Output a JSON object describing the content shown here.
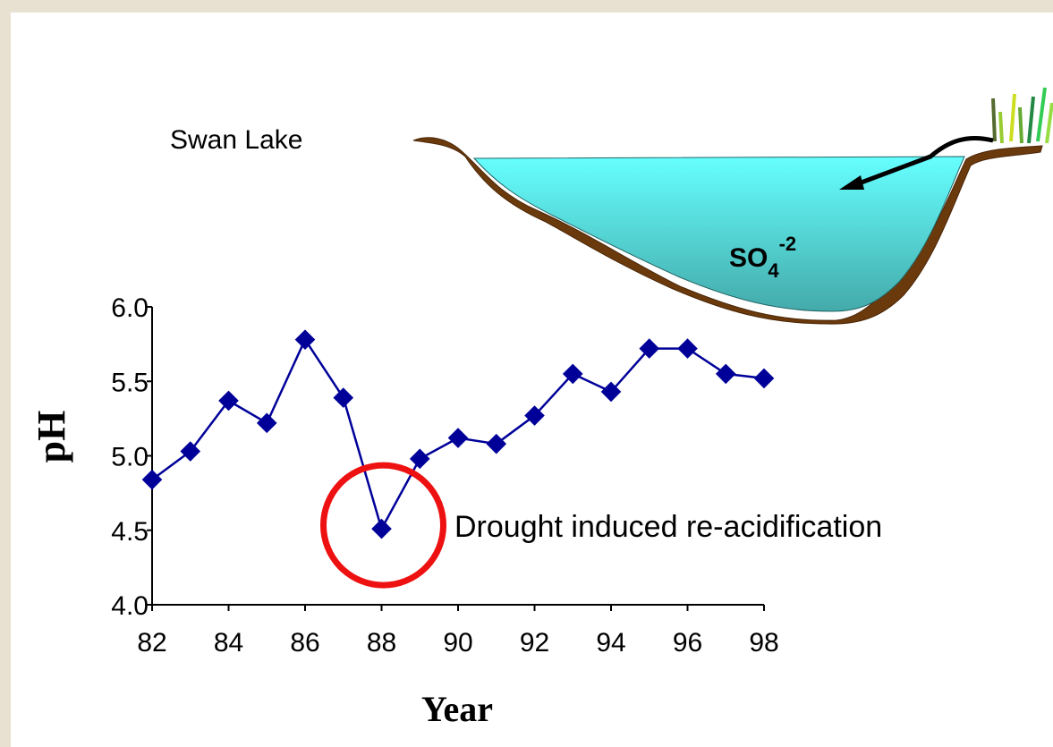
{
  "chart_data": {
    "type": "line",
    "x_label": "Year",
    "y_label": "pH",
    "lake_label": "Swan Lake",
    "annotation": "Drought induced re-acidification",
    "ion_label": {
      "base": "SO",
      "subscript": "4",
      "superscript": "-2"
    },
    "x": [
      82,
      83,
      84,
      85,
      86,
      87,
      88,
      89,
      90,
      91,
      92,
      93,
      94,
      95,
      96,
      97,
      98
    ],
    "series": [
      {
        "color": "#000099",
        "values": [
          4.84,
          5.03,
          5.37,
          5.22,
          5.78,
          5.39,
          4.51,
          4.98,
          5.12,
          5.08,
          5.27,
          5.55,
          5.43,
          5.72,
          5.72,
          5.55,
          5.52
        ]
      }
    ],
    "xlim": [
      82,
      98
    ],
    "xticks": [
      82,
      84,
      86,
      88,
      90,
      92,
      94,
      96,
      98
    ],
    "ylim": [
      4.0,
      6.0
    ],
    "yticks": [
      {
        "value": 4.0,
        "label": "4.0"
      },
      {
        "value": 4.5,
        "label": "4.5"
      },
      {
        "value": 5.0,
        "label": "5.0"
      },
      {
        "value": 5.5,
        "label": "5.5"
      },
      {
        "value": 6.0,
        "label": "6.0"
      }
    ],
    "highlight_color": "#ee1111"
  }
}
